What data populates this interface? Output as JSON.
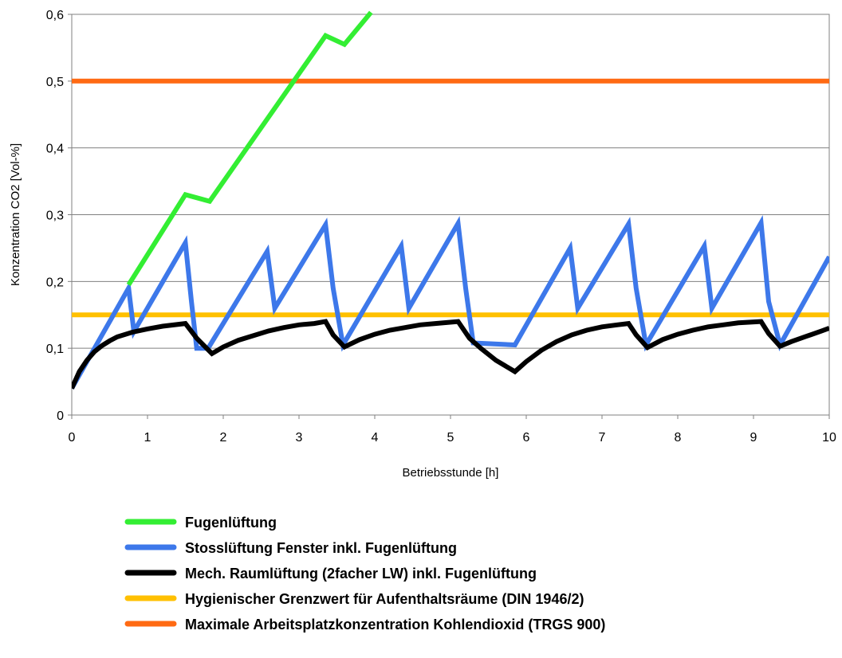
{
  "chart_data": {
    "type": "line",
    "title": "",
    "xlabel": "Betriebsstunde [h]",
    "ylabel": "Konzentration CO2 [Vol-%]",
    "xlim": [
      0,
      10
    ],
    "ylim": [
      0,
      0.6
    ],
    "x_ticks": [
      "0",
      "1",
      "2",
      "3",
      "4",
      "5",
      "6",
      "7",
      "8",
      "9",
      "10"
    ],
    "y_ticks": [
      "0",
      "0,1",
      "0,2",
      "0,3",
      "0,4",
      "0,5",
      "0,6"
    ],
    "grid": "horizontal",
    "legend_position": "bottom",
    "series": [
      {
        "name": "Fugenlüftung",
        "color": "#33ee33",
        "points": [
          [
            0.75,
            0.195
          ],
          [
            1.5,
            0.33
          ],
          [
            1.82,
            0.32
          ],
          [
            3.35,
            0.568
          ],
          [
            3.6,
            0.555
          ],
          [
            3.95,
            0.603
          ]
        ]
      },
      {
        "name": "Stosslüftung Fenster inkl. Fugenlüftung",
        "color": "#3d78ea",
        "points": [
          [
            0,
            0.04
          ],
          [
            0.75,
            0.19
          ],
          [
            0.82,
            0.125
          ],
          [
            1.5,
            0.258
          ],
          [
            1.58,
            0.17
          ],
          [
            1.65,
            0.1
          ],
          [
            1.8,
            0.1
          ],
          [
            2.58,
            0.245
          ],
          [
            2.68,
            0.16
          ],
          [
            3.35,
            0.285
          ],
          [
            3.45,
            0.19
          ],
          [
            3.58,
            0.105
          ],
          [
            4.35,
            0.253
          ],
          [
            4.45,
            0.16
          ],
          [
            5.1,
            0.287
          ],
          [
            5.2,
            0.19
          ],
          [
            5.3,
            0.108
          ],
          [
            5.85,
            0.105
          ],
          [
            6.58,
            0.25
          ],
          [
            6.68,
            0.16
          ],
          [
            7.35,
            0.286
          ],
          [
            7.45,
            0.19
          ],
          [
            7.58,
            0.105
          ],
          [
            8.35,
            0.253
          ],
          [
            8.45,
            0.16
          ],
          [
            9.1,
            0.288
          ],
          [
            9.2,
            0.17
          ],
          [
            9.35,
            0.105
          ],
          [
            10,
            0.237
          ]
        ]
      },
      {
        "name": "Mech. Raumlüftung (2facher LW) inkl. Fugenlüftung",
        "color": "#000000",
        "points": [
          [
            0,
            0.04
          ],
          [
            0.1,
            0.065
          ],
          [
            0.2,
            0.082
          ],
          [
            0.3,
            0.095
          ],
          [
            0.4,
            0.104
          ],
          [
            0.5,
            0.111
          ],
          [
            0.6,
            0.117
          ],
          [
            0.8,
            0.124
          ],
          [
            1.0,
            0.129
          ],
          [
            1.2,
            0.133
          ],
          [
            1.5,
            0.137
          ],
          [
            1.65,
            0.115
          ],
          [
            1.85,
            0.092
          ],
          [
            2.0,
            0.102
          ],
          [
            2.2,
            0.112
          ],
          [
            2.4,
            0.119
          ],
          [
            2.6,
            0.126
          ],
          [
            2.8,
            0.131
          ],
          [
            3.0,
            0.135
          ],
          [
            3.2,
            0.137
          ],
          [
            3.35,
            0.14
          ],
          [
            3.45,
            0.12
          ],
          [
            3.6,
            0.102
          ],
          [
            3.8,
            0.113
          ],
          [
            4.0,
            0.121
          ],
          [
            4.2,
            0.127
          ],
          [
            4.4,
            0.131
          ],
          [
            4.6,
            0.135
          ],
          [
            4.8,
            0.137
          ],
          [
            5.1,
            0.14
          ],
          [
            5.25,
            0.115
          ],
          [
            5.4,
            0.1
          ],
          [
            5.6,
            0.082
          ],
          [
            5.85,
            0.065
          ],
          [
            6.0,
            0.08
          ],
          [
            6.2,
            0.097
          ],
          [
            6.4,
            0.11
          ],
          [
            6.6,
            0.12
          ],
          [
            6.8,
            0.127
          ],
          [
            7.0,
            0.132
          ],
          [
            7.2,
            0.135
          ],
          [
            7.35,
            0.137
          ],
          [
            7.45,
            0.12
          ],
          [
            7.6,
            0.101
          ],
          [
            7.8,
            0.113
          ],
          [
            8.0,
            0.121
          ],
          [
            8.2,
            0.127
          ],
          [
            8.4,
            0.132
          ],
          [
            8.6,
            0.135
          ],
          [
            8.8,
            0.138
          ],
          [
            9.1,
            0.14
          ],
          [
            9.2,
            0.122
          ],
          [
            9.35,
            0.103
          ],
          [
            9.5,
            0.11
          ],
          [
            9.7,
            0.118
          ],
          [
            9.9,
            0.126
          ],
          [
            10,
            0.13
          ]
        ]
      },
      {
        "name": "Hygienischer Grenzwert für Aufenthaltsräume (DIN 1946/2)",
        "color": "#ffc000",
        "points": [
          [
            0,
            0.15
          ],
          [
            10,
            0.15
          ]
        ]
      },
      {
        "name": "Maximale Arbeitsplatzkonzentration Kohlendioxid (TRGS 900)",
        "color": "#ff6a13",
        "points": [
          [
            0,
            0.5
          ],
          [
            10,
            0.5
          ]
        ]
      }
    ]
  }
}
